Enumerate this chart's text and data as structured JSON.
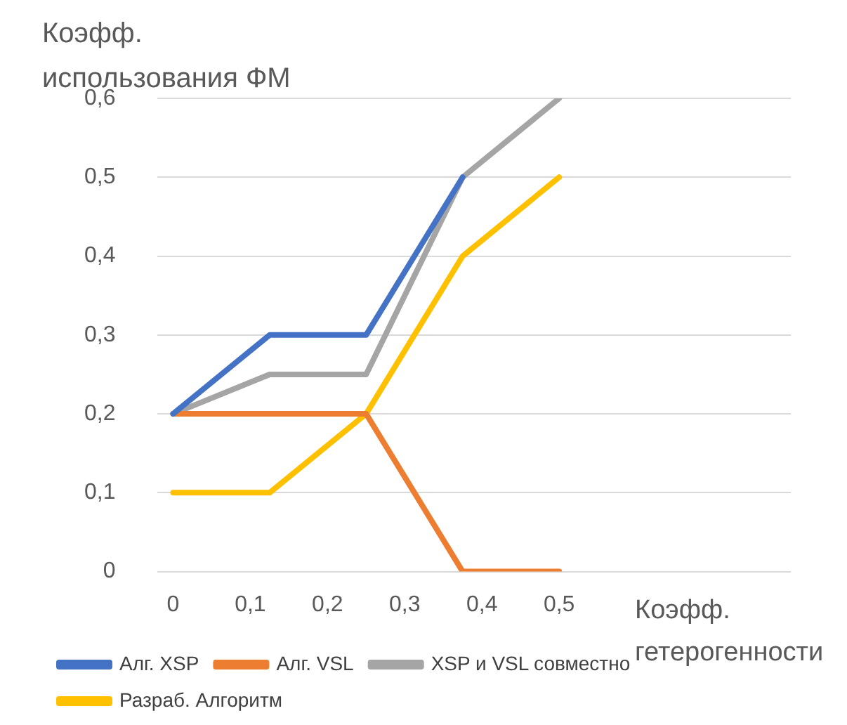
{
  "chart_data": {
    "type": "line",
    "ylabel": "Коэфф. использования ФМ",
    "xlabel": "Коэфф. гетерогенности",
    "x": [
      0,
      0.125,
      0.25,
      0.375,
      0.5
    ],
    "series": [
      {
        "name": "Алг. XSP",
        "color": "#4472c4",
        "values": [
          0.2,
          0.3,
          0.3,
          0.5,
          null
        ]
      },
      {
        "name": "Алг. VSL",
        "color": "#ed7d31",
        "values": [
          0.2,
          0.2,
          0.2,
          0,
          0
        ]
      },
      {
        "name": "XSP и VSL совместно",
        "color": "#a5a5a5",
        "values": [
          0.2,
          0.25,
          0.25,
          0.5,
          0.6
        ]
      },
      {
        "name": "Разраб. Алгоритм",
        "color": "#ffc000",
        "values": [
          0.1,
          0.1,
          0.2,
          0.4,
          0.5
        ]
      }
    ],
    "xlim": [
      -0.02,
      0.8
    ],
    "xticks": [
      {
        "value": 0,
        "label": "0"
      },
      {
        "value": 0.1,
        "label": "0,1"
      },
      {
        "value": 0.2,
        "label": "0,2"
      },
      {
        "value": 0.3,
        "label": "0,3"
      },
      {
        "value": 0.4,
        "label": "0,4"
      },
      {
        "value": 0.5,
        "label": "0,5"
      }
    ],
    "ylim": [
      0,
      0.6
    ],
    "yticks": [
      {
        "value": 0,
        "label": "0"
      },
      {
        "value": 0.1,
        "label": "0,1"
      },
      {
        "value": 0.2,
        "label": "0,2"
      },
      {
        "value": 0.3,
        "label": "0,3"
      },
      {
        "value": 0.4,
        "label": "0,4"
      },
      {
        "value": 0.5,
        "label": "0,5"
      },
      {
        "value": 0.6,
        "label": "0,6"
      }
    ],
    "grid": "y",
    "legend": "bottom",
    "marker": "none",
    "line_style": "solid"
  }
}
